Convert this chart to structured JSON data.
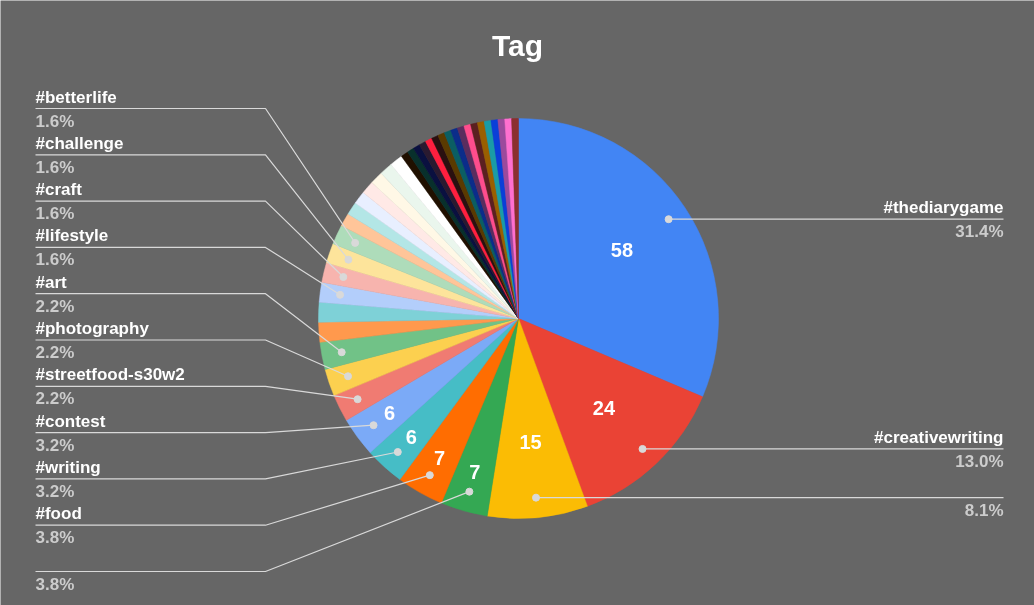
{
  "chart_data": {
    "type": "pie",
    "title": "Tag",
    "categories": [
      "#thediarygame",
      "#creativewriting",
      null,
      null,
      "#food",
      "#writing",
      "#contest",
      "#streetfood-s30w2",
      "#photography",
      "#art",
      null,
      null,
      "#lifestyle",
      "#craft",
      "#challenge",
      "#betterlife",
      null,
      null,
      null,
      null,
      null,
      null,
      null,
      null,
      null,
      null,
      null,
      null,
      null,
      null,
      null,
      null,
      null,
      null,
      null,
      null,
      null,
      null,
      null,
      null,
      null
    ],
    "values": [
      31.4,
      13.0,
      8.1,
      3.8,
      3.8,
      3.2,
      3.2,
      2.2,
      2.2,
      2.2,
      1.6,
      1.6,
      1.6,
      1.6,
      1.6,
      1.6,
      1.05,
      1.05,
      1.05,
      1.05,
      1.05,
      1.05,
      1.05,
      0.6,
      0.55,
      0.55,
      0.55,
      0.55,
      0.55,
      0.55,
      0.55,
      0.55,
      0.55,
      0.55,
      0.55,
      0.55,
      0.55,
      0.55,
      0.55,
      0.55,
      0.55
    ],
    "colors": [
      "#4285f4",
      "#ea4335",
      "#fbbc04",
      "#34a853",
      "#ff6d01",
      "#46bdc6",
      "#7baaf7",
      "#f07b72",
      "#fcd04f",
      "#71c287",
      "#ff994d",
      "#7ed1d7",
      "#b3cefb",
      "#f7b4ae",
      "#fde49b",
      "#aedcba",
      "#ffc599",
      "#b3e6e6",
      "#e8efff",
      "#ffe9e6",
      "#fff8e6",
      "#eaf6ed",
      "#ffffff",
      "#201000",
      "#08302c",
      "#0a1040",
      "#2a1a30",
      "#ff1f3f",
      "#2a1010",
      "#5a3a00",
      "#0b5e63",
      "#0b2d8a",
      "#5a2d5e",
      "#ff4d8d",
      "#5b2020",
      "#9a5f00",
      "#1a9ca6",
      "#0b3fd8",
      "#9c4a9c",
      "#ff6fcf",
      "#8b2f2f"
    ],
    "value_labels": [
      "31.4%",
      "13.0%",
      "8.1%",
      "3.8%",
      "3.8%",
      "3.2%",
      "3.2%",
      "2.2%",
      "2.2%",
      "2.2%",
      null,
      null,
      "1.6%",
      "1.6%",
      "1.6%",
      "1.6%",
      null,
      null,
      null,
      null,
      null,
      null,
      null,
      null,
      null,
      null,
      null,
      null,
      null,
      null,
      null,
      null,
      null,
      null,
      null,
      null,
      null,
      null,
      null,
      null,
      null
    ],
    "annotations": [
      "58",
      "24",
      "15",
      "7",
      "7",
      "6",
      "6"
    ]
  }
}
